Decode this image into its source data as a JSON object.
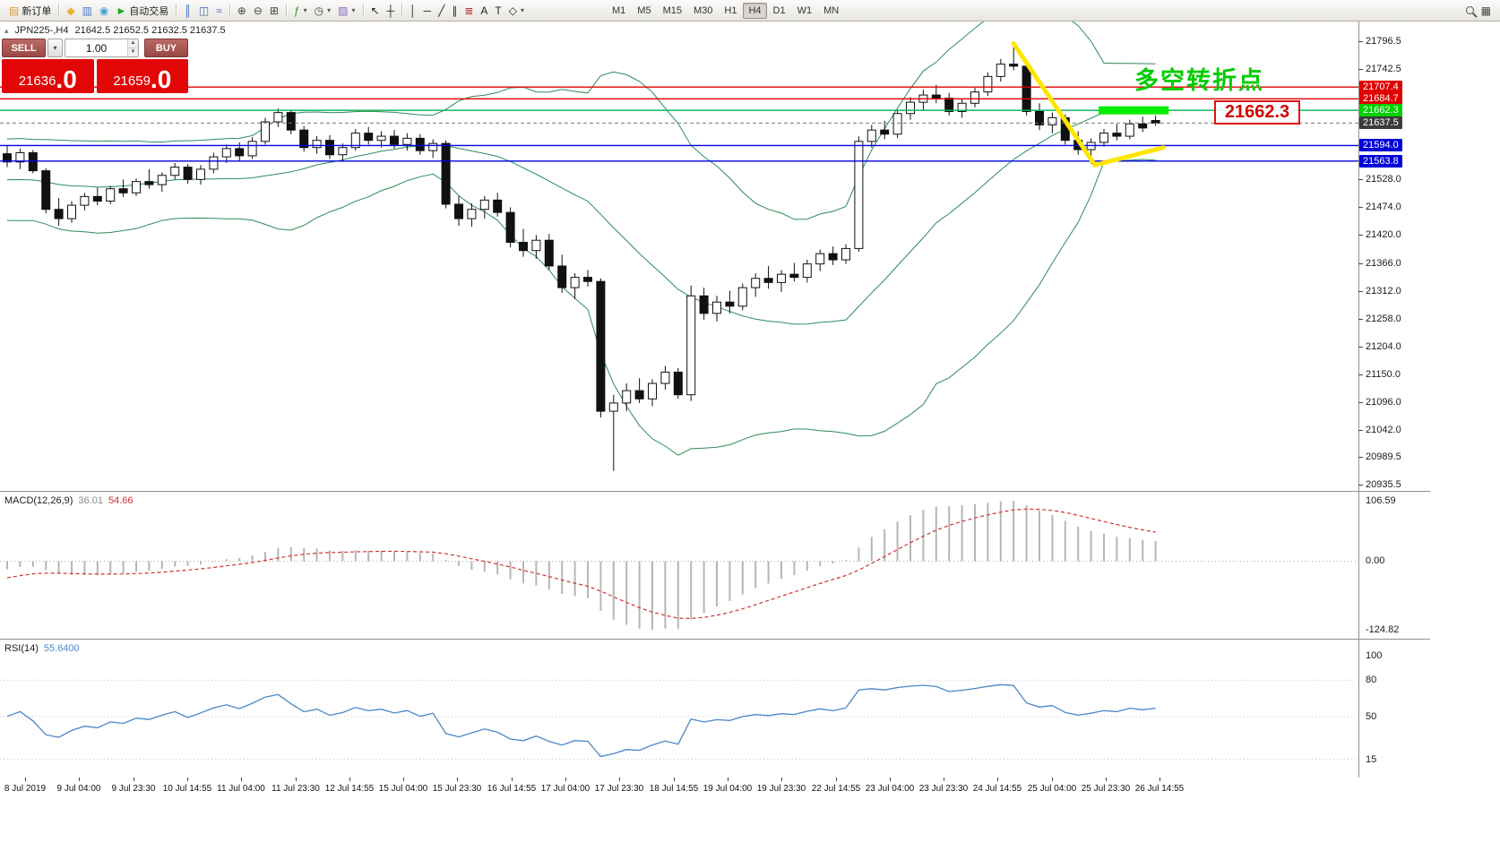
{
  "toolbar": {
    "groups": [
      [
        {
          "name": "new-order",
          "glyph": "▤",
          "glyph_color": "#d89a30",
          "label": "新订单"
        }
      ],
      [
        {
          "name": "profiles",
          "glyph": "◆",
          "glyph_color": "#e8b030"
        },
        {
          "name": "market-watch",
          "glyph": "▥",
          "glyph_color": "#4a78c8"
        },
        {
          "name": "navigator",
          "glyph": "◉",
          "glyph_color": "#4aa0d8"
        },
        {
          "name": "auto-trading",
          "glyph": "►",
          "glyph_color": "#18a818",
          "label": "自动交易"
        }
      ],
      [
        {
          "name": "chart-bars",
          "glyph": "║",
          "glyph_color": "#3a6abf"
        },
        {
          "name": "chart-candles",
          "glyph": "◫",
          "glyph_color": "#3a6abf"
        },
        {
          "name": "chart-line",
          "glyph": "≈",
          "glyph_color": "#3a6abf"
        }
      ],
      [
        {
          "name": "zoom-in",
          "glyph": "⊕",
          "glyph_color": "#444444"
        },
        {
          "name": "zoom-out",
          "glyph": "⊖",
          "glyph_color": "#444444"
        },
        {
          "name": "tile-windows",
          "glyph": "⊞",
          "glyph_color": "#444444"
        }
      ],
      [
        {
          "name": "indicators",
          "glyph": "ƒ",
          "glyph_color": "#18a018",
          "caret": true
        },
        {
          "name": "periods",
          "glyph": "◷",
          "glyph_color": "#444444",
          "caret": true
        },
        {
          "name": "templates",
          "glyph": "▨",
          "glyph_color": "#8868b8",
          "caret": true
        }
      ],
      [
        {
          "name": "cursor",
          "glyph": "↖",
          "glyph_color": "#222222"
        },
        {
          "name": "crosshair",
          "glyph": "┼",
          "glyph_color": "#222222"
        }
      ],
      [
        {
          "name": "vertical-line",
          "glyph": "│",
          "glyph_color": "#222222"
        },
        {
          "name": "horizontal-line",
          "glyph": "─",
          "glyph_color": "#222222"
        },
        {
          "name": "trendline",
          "glyph": "╱",
          "glyph_color": "#222222"
        },
        {
          "name": "equidistant-channel",
          "glyph": "∥",
          "glyph_color": "#222222"
        },
        {
          "name": "fibonacci",
          "glyph": "≣",
          "glyph_color": "#b03030"
        },
        {
          "name": "text",
          "glyph": "A",
          "glyph_color": "#222222"
        },
        {
          "name": "text-label",
          "glyph": "T",
          "glyph_color": "#222222"
        },
        {
          "name": "shapes",
          "glyph": "◇",
          "glyph_color": "#222222",
          "caret": true
        }
      ]
    ],
    "timeframes": [
      "M1",
      "M5",
      "M15",
      "M30",
      "H1",
      "H4",
      "D1",
      "W1",
      "MN"
    ],
    "active_timeframe": "H4",
    "right_buttons": [
      {
        "name": "search",
        "kind": "magnifier"
      },
      {
        "name": "quick-navigation",
        "glyph": "▦",
        "glyph_color": "#444444"
      }
    ]
  },
  "chart_header": {
    "symbol": "JPN225-,H4",
    "ohlc": "21642.5 21652.5 21632.5 21637.5"
  },
  "trade_panel": {
    "sell_label": "SELL",
    "buy_label": "BUY",
    "volume": "1.00",
    "bid_main": "21636",
    "bid_frac": ".0",
    "ask_main": "21659",
    "ask_frac": ".0"
  },
  "annotations": {
    "turning_point_text": "多空转折点",
    "turning_point_color": "#00cc00",
    "price_box_text": "21662.3",
    "price_box_color": "#d40000"
  },
  "indicators": {
    "macd": {
      "label": "MACD(12,26,9)",
      "value_main": "36.01",
      "value_signal": "54.66",
      "axis_labels": [
        "106.59",
        "0.00",
        "-124.82"
      ]
    },
    "rsi": {
      "label": "RSI(14)",
      "value": "55.6400",
      "axis_labels": [
        100,
        80,
        50,
        15
      ],
      "levels": [
        80,
        50,
        15
      ]
    }
  },
  "chart_data": {
    "type": "candlestick",
    "symbol": "JPN225-",
    "timeframe": "H4",
    "title": "JPN225-,H4",
    "price_axis": {
      "top_price": 21796.5,
      "bottom_price": 20935.5,
      "plain_labels": [
        21796.5,
        21742.5,
        21528.0,
        21474.0,
        21420.0,
        21366.0,
        21312.0,
        21258.0,
        21204.0,
        21150.0,
        21096.0,
        21042.0,
        20989.5,
        20935.5
      ]
    },
    "tags": [
      {
        "price": 21707.4,
        "text": "21707.4",
        "bg": "#e00000"
      },
      {
        "price": 21684.7,
        "text": "21684.7",
        "bg": "#e00000"
      },
      {
        "price": 21662.3,
        "text": "21662.3",
        "bg": "#00cf00"
      },
      {
        "price": 21637.5,
        "text": "21637.5",
        "bg": "#3c3c3c"
      },
      {
        "price": 21594.0,
        "text": "21594.0",
        "bg": "#0000d8"
      },
      {
        "price": 21563.8,
        "text": "21563.8",
        "bg": "#0000d8"
      }
    ],
    "hlines": [
      {
        "price": 21707.4,
        "color": "#e00000",
        "w": 1.4
      },
      {
        "price": 21684.7,
        "color": "#e00000",
        "w": 1.4
      },
      {
        "price": 21662.3,
        "color": "#00b050",
        "w": 1.4
      },
      {
        "price": 21594.0,
        "color": "#0000e0",
        "w": 1.4
      },
      {
        "price": 21563.8,
        "color": "#0000e0",
        "w": 1.4
      },
      {
        "price": 21637.5,
        "color": "#777777",
        "w": 1,
        "dash": true
      }
    ],
    "highlight": {
      "price": 21662.3,
      "from_index": 85,
      "to_index": 89.6,
      "color": "#00ee00",
      "thickness": 9
    },
    "trend_annotation": {
      "color": "#ffe600",
      "width": 5,
      "points": [
        [
          78,
          21792
        ],
        [
          84.3,
          21556
        ],
        [
          89.6,
          21590
        ]
      ]
    },
    "bollinger": {
      "period": 20,
      "deviation": 2
    },
    "colors": {
      "up": "#ffffff",
      "down": "#111111",
      "outline": "#111111",
      "bollinger": "#2e8b57",
      "macd_hist": "#b6b6b6",
      "macd_signal": "#d03030",
      "rsi": "#4a86c8"
    },
    "time_labels": [
      "8 Jul 2019",
      "9 Jul 04:00",
      "9 Jul 23:30",
      "10 Jul 14:55",
      "11 Jul 04:00",
      "11 Jul 23:30",
      "12 Jul 14:55",
      "15 Jul 04:00",
      "15 Jul 23:30",
      "16 Jul 14:55",
      "17 Jul 04:00",
      "17 Jul 23:30",
      "18 Jul 14:55",
      "19 Jul 04:00",
      "19 Jul 23:30",
      "22 Jul 14:55",
      "23 Jul 04:00",
      "23 Jul 23:30",
      "24 Jul 14:55",
      "25 Jul 04:00",
      "25 Jul 23:30",
      "26 Jul 14:55"
    ],
    "prehistory_closes": [
      21690,
      21700,
      21710,
      21720,
      21705,
      21715,
      21700,
      21685,
      21695,
      21680,
      21665,
      21675,
      21655,
      21640,
      21650,
      21630,
      21615,
      21625,
      21605,
      21590,
      21600,
      21575,
      21560,
      21545,
      21555,
      21530,
      21510,
      21520,
      21495,
      21470,
      21480,
      21455,
      21465,
      21490,
      21515,
      21540,
      21560,
      21580,
      21570,
      21575
    ],
    "candles": [
      [
        21578,
        21595,
        21552,
        21562
      ],
      [
        21562,
        21588,
        21548,
        21580
      ],
      [
        21580,
        21585,
        21540,
        21545
      ],
      [
        21545,
        21550,
        21462,
        21470
      ],
      [
        21470,
        21492,
        21438,
        21452
      ],
      [
        21452,
        21486,
        21444,
        21478
      ],
      [
        21478,
        21502,
        21468,
        21495
      ],
      [
        21495,
        21512,
        21478,
        21486
      ],
      [
        21486,
        21516,
        21480,
        21510
      ],
      [
        21510,
        21528,
        21494,
        21502
      ],
      [
        21502,
        21530,
        21496,
        21524
      ],
      [
        21524,
        21548,
        21510,
        21518
      ],
      [
        21518,
        21542,
        21504,
        21536
      ],
      [
        21536,
        21560,
        21528,
        21552
      ],
      [
        21552,
        21558,
        21520,
        21528
      ],
      [
        21528,
        21556,
        21518,
        21548
      ],
      [
        21548,
        21580,
        21540,
        21572
      ],
      [
        21572,
        21596,
        21560,
        21588
      ],
      [
        21588,
        21600,
        21564,
        21574
      ],
      [
        21574,
        21610,
        21568,
        21602
      ],
      [
        21602,
        21648,
        21596,
        21640
      ],
      [
        21640,
        21666,
        21630,
        21658
      ],
      [
        21658,
        21662,
        21616,
        21624
      ],
      [
        21624,
        21632,
        21582,
        21590
      ],
      [
        21590,
        21612,
        21578,
        21604
      ],
      [
        21604,
        21614,
        21568,
        21576
      ],
      [
        21576,
        21598,
        21562,
        21590
      ],
      [
        21590,
        21626,
        21584,
        21618
      ],
      [
        21618,
        21630,
        21596,
        21604
      ],
      [
        21604,
        21622,
        21590,
        21612
      ],
      [
        21612,
        21624,
        21588,
        21596
      ],
      [
        21596,
        21618,
        21584,
        21608
      ],
      [
        21608,
        21616,
        21576,
        21584
      ],
      [
        21584,
        21606,
        21570,
        21598
      ],
      [
        21598,
        21604,
        21472,
        21480
      ],
      [
        21480,
        21496,
        21438,
        21452
      ],
      [
        21452,
        21482,
        21436,
        21470
      ],
      [
        21470,
        21496,
        21452,
        21488
      ],
      [
        21488,
        21502,
        21456,
        21464
      ],
      [
        21464,
        21474,
        21396,
        21406
      ],
      [
        21406,
        21432,
        21378,
        21390
      ],
      [
        21390,
        21420,
        21374,
        21410
      ],
      [
        21410,
        21422,
        21352,
        21360
      ],
      [
        21360,
        21382,
        21308,
        21318
      ],
      [
        21318,
        21346,
        21296,
        21338
      ],
      [
        21338,
        21352,
        21320,
        21330
      ],
      [
        21330,
        21336,
        21066,
        21078
      ],
      [
        21078,
        21110,
        20962,
        21094
      ],
      [
        21094,
        21132,
        21078,
        21118
      ],
      [
        21118,
        21142,
        21094,
        21102
      ],
      [
        21102,
        21140,
        21088,
        21132
      ],
      [
        21132,
        21166,
        21120,
        21154
      ],
      [
        21154,
        21162,
        21102,
        21110
      ],
      [
        21110,
        21322,
        21098,
        21302
      ],
      [
        21302,
        21318,
        21256,
        21268
      ],
      [
        21268,
        21302,
        21252,
        21290
      ],
      [
        21290,
        21312,
        21268,
        21282
      ],
      [
        21282,
        21326,
        21274,
        21318
      ],
      [
        21318,
        21346,
        21300,
        21336
      ],
      [
        21336,
        21360,
        21316,
        21328
      ],
      [
        21328,
        21352,
        21310,
        21344
      ],
      [
        21344,
        21366,
        21330,
        21338
      ],
      [
        21338,
        21372,
        21328,
        21364
      ],
      [
        21364,
        21392,
        21350,
        21384
      ],
      [
        21384,
        21398,
        21362,
        21372
      ],
      [
        21372,
        21402,
        21364,
        21394
      ],
      [
        21394,
        21612,
        21388,
        21602
      ],
      [
        21602,
        21634,
        21590,
        21624
      ],
      [
        21624,
        21642,
        21606,
        21616
      ],
      [
        21616,
        21664,
        21608,
        21656
      ],
      [
        21656,
        21688,
        21644,
        21678
      ],
      [
        21678,
        21702,
        21662,
        21692
      ],
      [
        21692,
        21712,
        21676,
        21686
      ],
      [
        21686,
        21696,
        21652,
        21660
      ],
      [
        21660,
        21684,
        21648,
        21676
      ],
      [
        21676,
        21706,
        21668,
        21698
      ],
      [
        21698,
        21736,
        21690,
        21728
      ],
      [
        21728,
        21762,
        21718,
        21752
      ],
      [
        21752,
        21796,
        21740,
        21748
      ],
      [
        21748,
        21756,
        21652,
        21660
      ],
      [
        21660,
        21676,
        21624,
        21634
      ],
      [
        21634,
        21658,
        21618,
        21648
      ],
      [
        21648,
        21654,
        21596,
        21604
      ],
      [
        21604,
        21622,
        21576,
        21586
      ],
      [
        21586,
        21608,
        21558,
        21600
      ],
      [
        21600,
        21626,
        21592,
        21618
      ],
      [
        21618,
        21636,
        21604,
        21612
      ],
      [
        21612,
        21644,
        21606,
        21636
      ],
      [
        21636,
        21650,
        21620,
        21628
      ],
      [
        21642.5,
        21652.5,
        21632.5,
        21637.5
      ]
    ]
  }
}
